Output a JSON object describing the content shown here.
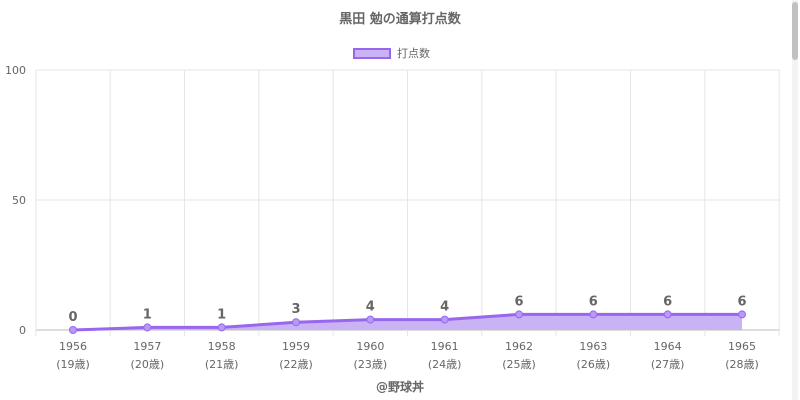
{
  "chart_data": {
    "type": "area",
    "title": "黒田 勉の通算打点数",
    "categories": [
      "1956",
      "1957",
      "1958",
      "1959",
      "1960",
      "1961",
      "1962",
      "1963",
      "1964",
      "1965"
    ],
    "sublabels": [
      "(19歳)",
      "(20歳)",
      "(21歳)",
      "(22歳)",
      "(23歳)",
      "(24歳)",
      "(25歳)",
      "(26歳)",
      "(27歳)",
      "(28歳)"
    ],
    "series": [
      {
        "name": "打点数",
        "values": [
          0,
          1,
          1,
          3,
          4,
          4,
          6,
          6,
          6,
          6
        ]
      }
    ],
    "ylim": [
      0,
      100
    ],
    "yticks": [
      "0",
      "50",
      "100"
    ],
    "grid": true,
    "legend_position": "top-center",
    "colors": {
      "line": "#9966ee",
      "fill": "#c9b3f5",
      "grid": "#e6e6e6"
    }
  },
  "footer": {
    "credit": "@野球丼"
  }
}
